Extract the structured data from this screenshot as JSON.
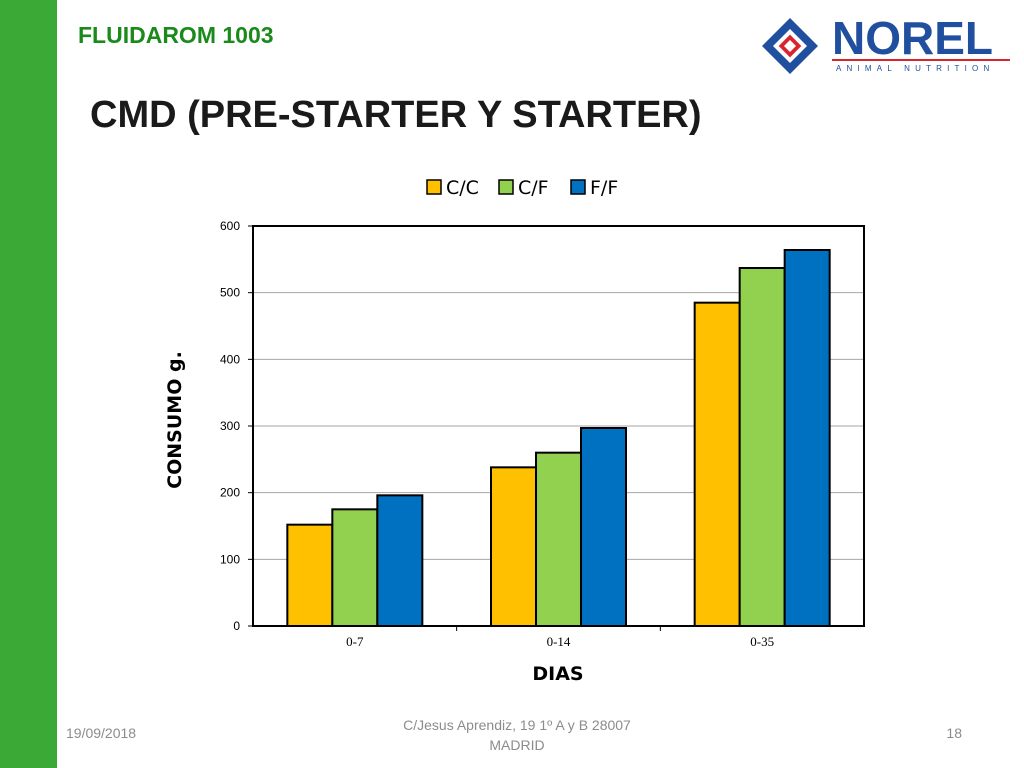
{
  "slide": {
    "product": "FLUIDAROM 1003",
    "title": "CMD (PRE-STARTER Y STARTER)"
  },
  "logo": {
    "name": "NOREL",
    "tagline": "ANIMAL NUTRITION",
    "colors": {
      "blue": "#1f4f9e",
      "red": "#d9232d"
    }
  },
  "chart_data": {
    "type": "bar",
    "categories": [
      "0-7",
      "0-14",
      "0-35"
    ],
    "series": [
      {
        "name": "C/C",
        "color": "#ffc000",
        "values": [
          152,
          238,
          485
        ]
      },
      {
        "name": "C/F",
        "color": "#92d050",
        "values": [
          175,
          260,
          537
        ]
      },
      {
        "name": "F/F",
        "color": "#0070c0",
        "values": [
          196,
          297,
          564
        ]
      }
    ],
    "xlabel": "DIAS",
    "ylabel": "CONSUMO g.",
    "ylim": [
      0,
      600
    ],
    "yticks": [
      0,
      100,
      200,
      300,
      400,
      500,
      600
    ],
    "grid": true,
    "legend": "top"
  },
  "footer": {
    "date": "19/09/2018",
    "address_line1": "C/Jesus Aprendiz, 19 1º A y B 28007",
    "address_line2": "MADRID",
    "page": "18"
  }
}
